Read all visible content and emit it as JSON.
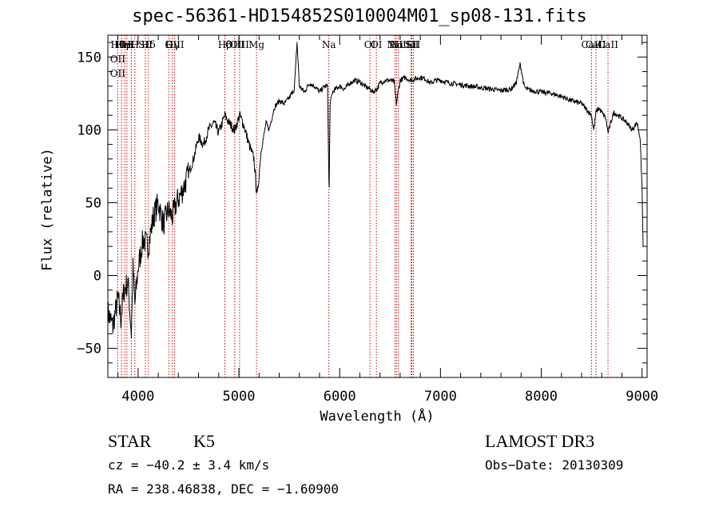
{
  "chart_data": {
    "type": "line",
    "title": "spec-56361-HD154852S010004M01_sp08-131.fits",
    "xlabel": "Wavelength (Å)",
    "ylabel": "Flux (relative)",
    "xlim": [
      3700,
      9050
    ],
    "ylim": [
      -70,
      165
    ],
    "x_ticks": [
      4000,
      5000,
      6000,
      7000,
      8000,
      9000
    ],
    "y_ticks": [
      -50,
      0,
      50,
      100,
      150
    ],
    "x_tick_labels": [
      "4000",
      "5000",
      "6000",
      "7000",
      "8000",
      "9000"
    ],
    "y_tick_labels": [
      "−50",
      "0",
      "50",
      "100",
      "150"
    ],
    "series": [
      {
        "name": "flux",
        "color": "#000000",
        "x": [
          3700,
          3750,
          3800,
          3830,
          3860,
          3900,
          3933,
          3950,
          3968,
          4000,
          4050,
          4102,
          4150,
          4200,
          4250,
          4300,
          4340,
          4380,
          4420,
          4450,
          4500,
          4550,
          4600,
          4650,
          4700,
          4750,
          4800,
          4861,
          4900,
          4959,
          5007,
          5050,
          5100,
          5150,
          5172,
          5183,
          5220,
          5270,
          5300,
          5350,
          5400,
          5450,
          5500,
          5550,
          5577,
          5600,
          5650,
          5700,
          5750,
          5800,
          5850,
          5880,
          5893,
          5896,
          5905,
          5930,
          5960,
          6000,
          6050,
          6100,
          6150,
          6200,
          6250,
          6300,
          6330,
          6370,
          6400,
          6450,
          6500,
          6540,
          6563,
          6580,
          6600,
          6650,
          6700,
          6750,
          6800,
          6850,
          6900,
          6950,
          7000,
          7100,
          7200,
          7300,
          7400,
          7500,
          7600,
          7700,
          7750,
          7790,
          7800,
          7830,
          7850,
          7900,
          8000,
          8100,
          8200,
          8300,
          8400,
          8498,
          8520,
          8542,
          8570,
          8600,
          8640,
          8662,
          8690,
          8720,
          8760,
          8800,
          8850,
          8900,
          8950,
          8980,
          9000,
          9010
        ],
        "y": [
          -25,
          -35,
          -15,
          -30,
          -10,
          -5,
          -40,
          5,
          -20,
          5,
          25,
          20,
          40,
          50,
          35,
          45,
          40,
          50,
          55,
          60,
          70,
          80,
          95,
          90,
          100,
          105,
          98,
          110,
          105,
          100,
          110,
          103,
          90,
          80,
          60,
          55,
          85,
          105,
          100,
          115,
          120,
          118,
          122,
          128,
          160,
          130,
          126,
          132,
          130,
          126,
          130,
          130,
          65,
          60,
          118,
          126,
          128,
          130,
          128,
          132,
          134,
          133,
          130,
          128,
          126,
          128,
          132,
          134,
          134,
          133,
          118,
          126,
          134,
          136,
          134,
          135,
          136,
          135,
          132,
          134,
          134,
          132,
          131,
          130,
          129,
          128,
          127,
          128,
          132,
          145,
          142,
          130,
          128,
          127,
          126,
          125,
          123,
          120,
          118,
          110,
          100,
          112,
          115,
          112,
          108,
          98,
          105,
          112,
          110,
          108,
          105,
          100,
          105,
          95,
          60,
          20
        ]
      }
    ],
    "line_labels": [
      {
        "wavelength": 3798,
        "lines": [
          "Hθ",
          "OII",
          "OII"
        ]
      },
      {
        "wavelength": 3835,
        "lines": [
          "Hη"
        ]
      },
      {
        "wavelength": 3869,
        "lines": [
          "HeI"
        ]
      },
      {
        "wavelength": 3889,
        "lines": [
          "H"
        ]
      },
      {
        "wavelength": 3933,
        "lines": [
          "K"
        ]
      },
      {
        "wavelength": 3968,
        "lines": [
          "H"
        ]
      },
      {
        "wavelength": 4072,
        "lines": [
          "SII"
        ]
      },
      {
        "wavelength": 4102,
        "lines": [
          "Hδ"
        ]
      },
      {
        "wavelength": 4304,
        "lines": [
          "G"
        ]
      },
      {
        "wavelength": 4340,
        "lines": [
          "Hγ"
        ]
      },
      {
        "wavelength": 4363,
        "lines": [
          "OIII"
        ]
      },
      {
        "wavelength": 4861,
        "lines": [
          "Hβ"
        ]
      },
      {
        "wavelength": 4959,
        "lines": [
          "OIII"
        ]
      },
      {
        "wavelength": 5007,
        "lines": [
          "OIII"
        ]
      },
      {
        "wavelength": 5175,
        "lines": [
          "Mg"
        ]
      },
      {
        "wavelength": 5893,
        "lines": [
          "Na"
        ]
      },
      {
        "wavelength": 6300,
        "lines": [
          "OI"
        ]
      },
      {
        "wavelength": 6364,
        "lines": [
          "OI"
        ]
      },
      {
        "wavelength": 6548,
        "lines": [
          "NII"
        ]
      },
      {
        "wavelength": 6563,
        "lines": [
          "Hα"
        ]
      },
      {
        "wavelength": 6583,
        "lines": [
          "NII"
        ]
      },
      {
        "wavelength": 6708,
        "lines": [
          "Li"
        ]
      },
      {
        "wavelength": 6716,
        "lines": [
          "SII"
        ]
      },
      {
        "wavelength": 6731,
        "lines": [
          "SII"
        ]
      },
      {
        "wavelength": 8498,
        "lines": [
          "CaII"
        ]
      },
      {
        "wavelength": 8542,
        "lines": [
          "CaII"
        ]
      },
      {
        "wavelength": 8662,
        "lines": [
          "CaII"
        ]
      }
    ],
    "line_color": "#cc0000",
    "marker_wavelengths": [
      3798,
      3835,
      3869,
      3889,
      3933,
      3968,
      4072,
      4102,
      4304,
      4340,
      4363,
      4861,
      4959,
      5007,
      5175,
      5893,
      6300,
      6364,
      6548,
      6563,
      6583,
      6708,
      6716,
      6731,
      8498,
      8542,
      8662
    ]
  },
  "info": {
    "object_class": "STAR",
    "subclass": "K5",
    "survey": "LAMOST DR3",
    "cz": "cz = −40.2 ± 3.4 km/s",
    "obs_date": "Obs−Date: 20130309",
    "radec": "RA = 238.46838, DEC =  −1.60900"
  }
}
